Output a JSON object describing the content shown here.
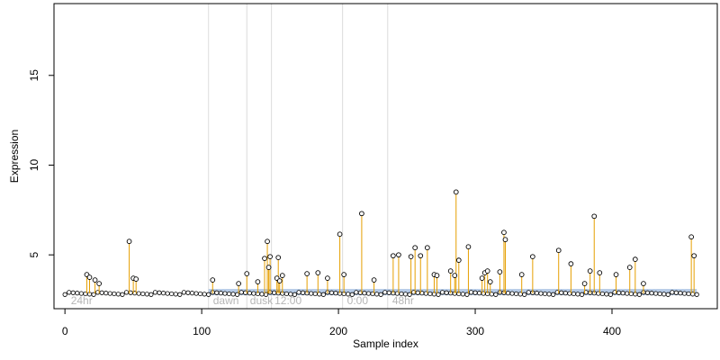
{
  "chart_data": {
    "type": "scatter",
    "title": "",
    "xlabel": "Sample index",
    "ylabel": "Expression",
    "xlim": [
      -8,
      477
    ],
    "ylim": [
      2.0,
      19.0
    ],
    "x_ticks": [
      0,
      100,
      200,
      300,
      400
    ],
    "y_ticks": [
      5,
      10,
      15
    ],
    "grid": false,
    "legend": "none",
    "baseline": 2.85,
    "period_boundaries": [
      105,
      133,
      151,
      203,
      236
    ],
    "period_labels": [
      {
        "text": "24hr",
        "x": 3
      },
      {
        "text": "dawn",
        "x": 107
      },
      {
        "text": "dusk",
        "x": 134
      },
      {
        "text": "12:00",
        "x": 152
      },
      {
        "text": "0:00",
        "x": 205
      },
      {
        "text": "48hr",
        "x": 238
      }
    ],
    "highlight_range": [
      105,
      462
    ],
    "series": [
      {
        "values": [
          [
            16,
            3.9
          ],
          [
            18,
            3.75
          ],
          [
            22,
            3.6
          ],
          [
            25,
            3.4
          ],
          [
            47,
            5.75
          ],
          [
            50,
            3.7
          ],
          [
            52,
            3.65
          ],
          [
            108,
            3.6
          ],
          [
            127,
            3.4
          ],
          [
            133,
            3.95
          ],
          [
            141,
            3.5
          ],
          [
            146,
            4.8
          ],
          [
            148,
            5.75
          ],
          [
            149,
            4.3
          ],
          [
            150,
            4.9
          ],
          [
            155,
            3.7
          ],
          [
            156,
            4.85
          ],
          [
            157,
            3.55
          ],
          [
            159,
            3.85
          ],
          [
            177,
            3.95
          ],
          [
            185,
            4.0
          ],
          [
            192,
            3.7
          ],
          [
            201,
            6.15
          ],
          [
            204,
            3.9
          ],
          [
            217,
            7.3
          ],
          [
            226,
            3.6
          ],
          [
            240,
            4.95
          ],
          [
            244,
            5.0
          ],
          [
            253,
            4.9
          ],
          [
            256,
            5.4
          ],
          [
            260,
            4.95
          ],
          [
            265,
            5.4
          ],
          [
            270,
            3.9
          ],
          [
            272,
            3.85
          ],
          [
            282,
            4.1
          ],
          [
            285,
            3.85
          ],
          [
            286,
            8.5
          ],
          [
            288,
            4.7
          ],
          [
            295,
            5.45
          ],
          [
            305,
            3.7
          ],
          [
            307,
            4.0
          ],
          [
            309,
            4.1
          ],
          [
            311,
            3.5
          ],
          [
            318,
            4.05
          ],
          [
            321,
            6.25
          ],
          [
            322,
            5.85
          ],
          [
            334,
            3.9
          ],
          [
            342,
            4.9
          ],
          [
            361,
            5.25
          ],
          [
            370,
            4.5
          ],
          [
            380,
            3.4
          ],
          [
            384,
            4.1
          ],
          [
            387,
            7.15
          ],
          [
            391,
            4.0
          ],
          [
            403,
            3.9
          ],
          [
            413,
            4.3
          ],
          [
            417,
            4.75
          ],
          [
            423,
            3.4
          ],
          [
            458,
            6.0
          ],
          [
            460,
            4.95
          ]
        ]
      }
    ]
  },
  "colors": {
    "stem": "#e69f00",
    "point_fill": "#ffffff",
    "point_stroke": "#000000",
    "baseline": "#9eb9df",
    "period_line": "#dcdcdc",
    "period_text": "#b5b5b5"
  }
}
